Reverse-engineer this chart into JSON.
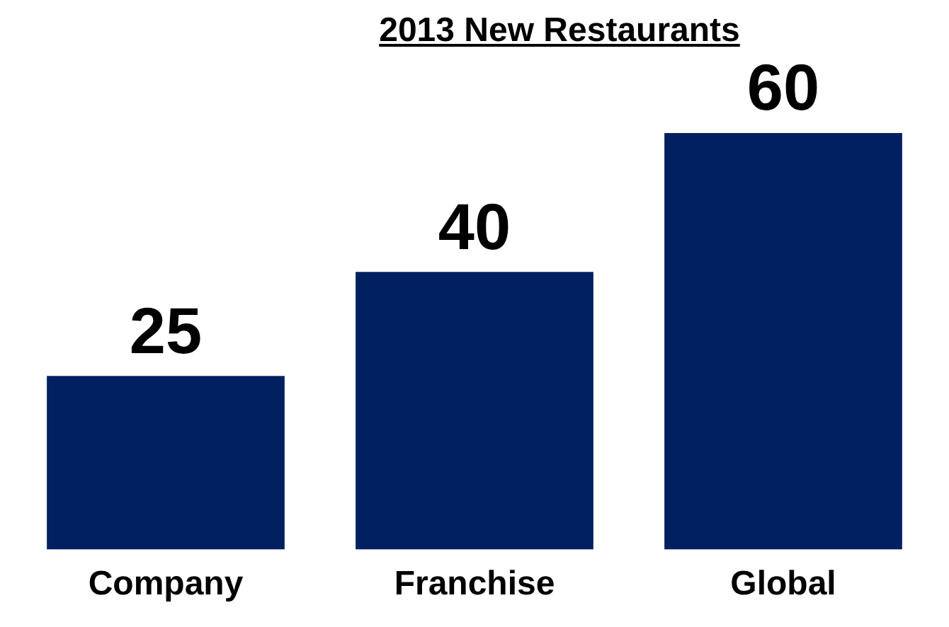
{
  "chart_data": {
    "type": "bar",
    "title": "2013 New Restaurants",
    "categories": [
      "Company",
      "Franchise",
      "Global"
    ],
    "values": [
      25,
      40,
      60
    ],
    "color": "#002060",
    "data_labels": true,
    "grid": false,
    "legend": false
  }
}
